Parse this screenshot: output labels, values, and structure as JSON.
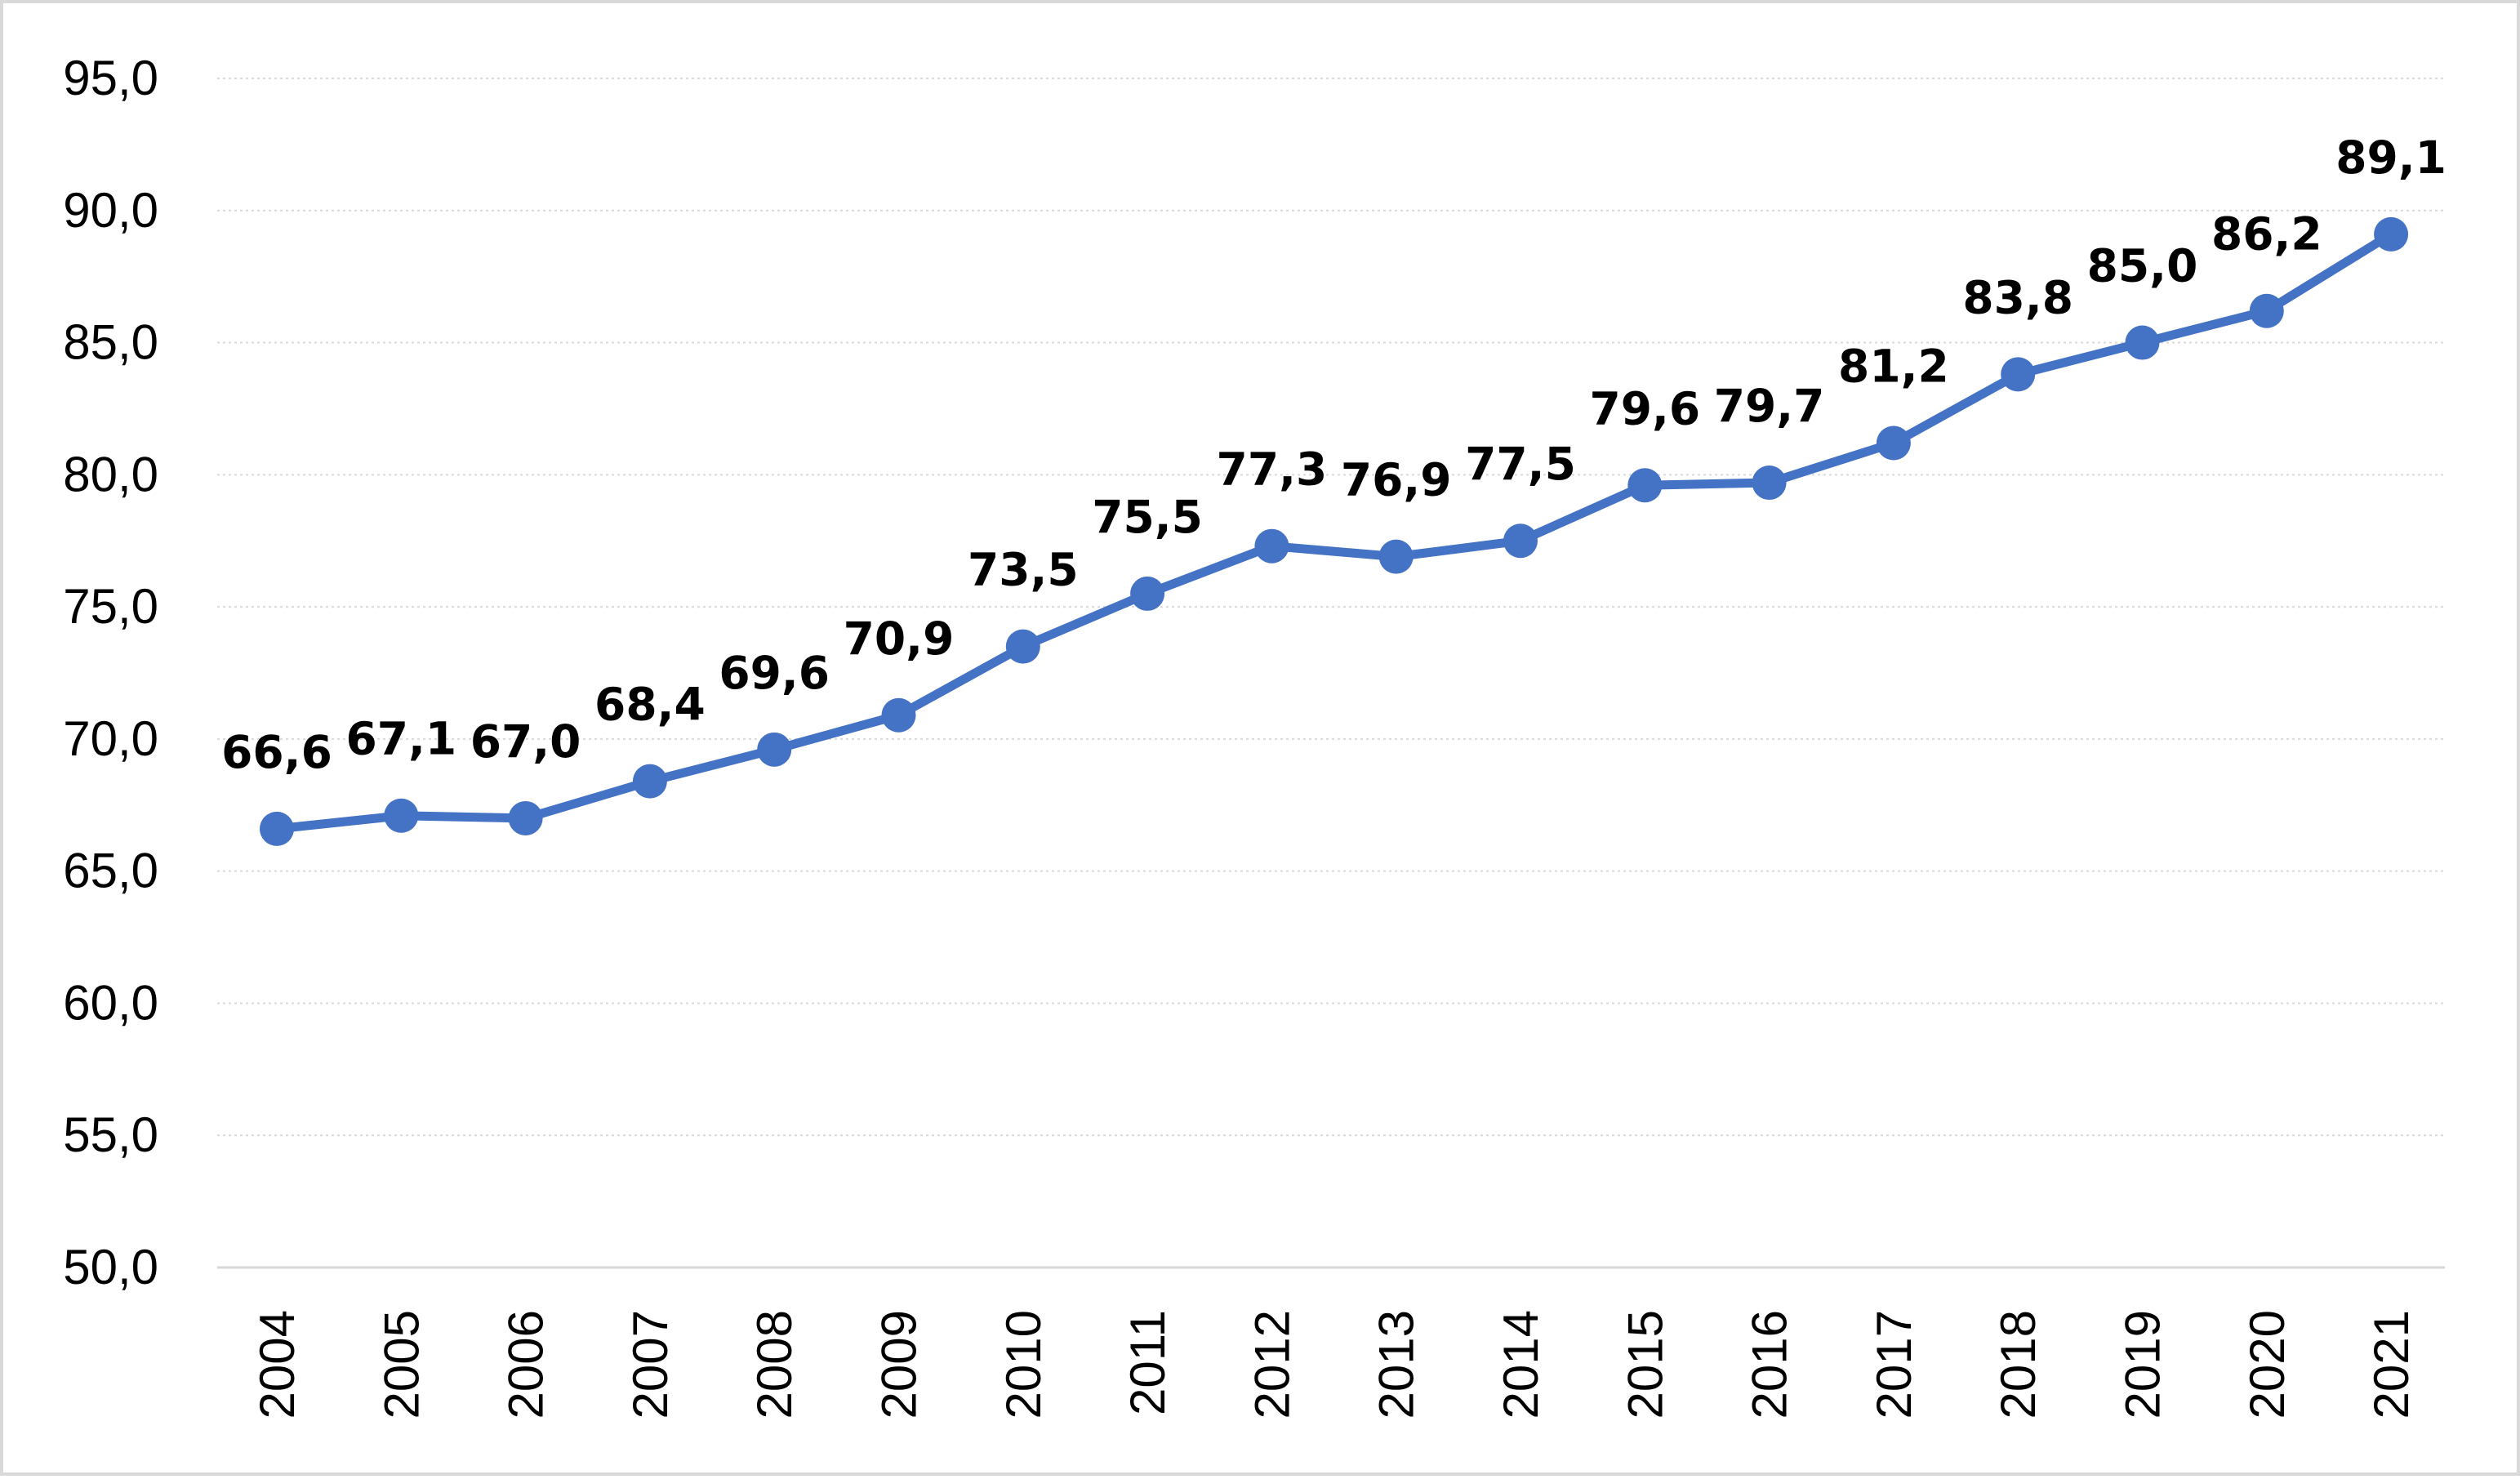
{
  "chart_data": {
    "type": "line",
    "categories": [
      "2004",
      "2005",
      "2006",
      "2007",
      "2008",
      "2009",
      "2010",
      "2011",
      "2012",
      "2013",
      "2014",
      "2015",
      "2016",
      "2017",
      "2018",
      "2019",
      "2020",
      "2021"
    ],
    "series": [
      {
        "values": [
          66.6,
          67.1,
          67.0,
          68.4,
          69.6,
          70.9,
          73.5,
          75.5,
          77.3,
          76.9,
          77.5,
          79.6,
          79.7,
          81.2,
          83.8,
          85.0,
          86.2,
          89.1
        ],
        "data_labels": [
          "66,6",
          "67,1",
          "67,0",
          "68,4",
          "69,6",
          "70,9",
          "73,5",
          "75,5",
          "77,3",
          "76,9",
          "77,5",
          "79,6",
          "79,7",
          "81,2",
          "83,8",
          "85,0",
          "86,2",
          "89,1"
        ],
        "color": "#4472c4"
      }
    ],
    "y_ticks": [
      50,
      55,
      60,
      65,
      70,
      75,
      80,
      85,
      90,
      95
    ],
    "y_tick_labels": [
      "50,0",
      "55,0",
      "60,0",
      "65,0",
      "70,0",
      "75,0",
      "80,0",
      "85,0",
      "90,0",
      "95,0"
    ],
    "ylim": [
      50,
      95
    ],
    "title": "",
    "xlabel": "",
    "ylabel": "",
    "grid": "horizontal-dotted",
    "legend": "none",
    "gridline_color": "#d9d9d9",
    "axis_color": "#d9d9d9"
  }
}
